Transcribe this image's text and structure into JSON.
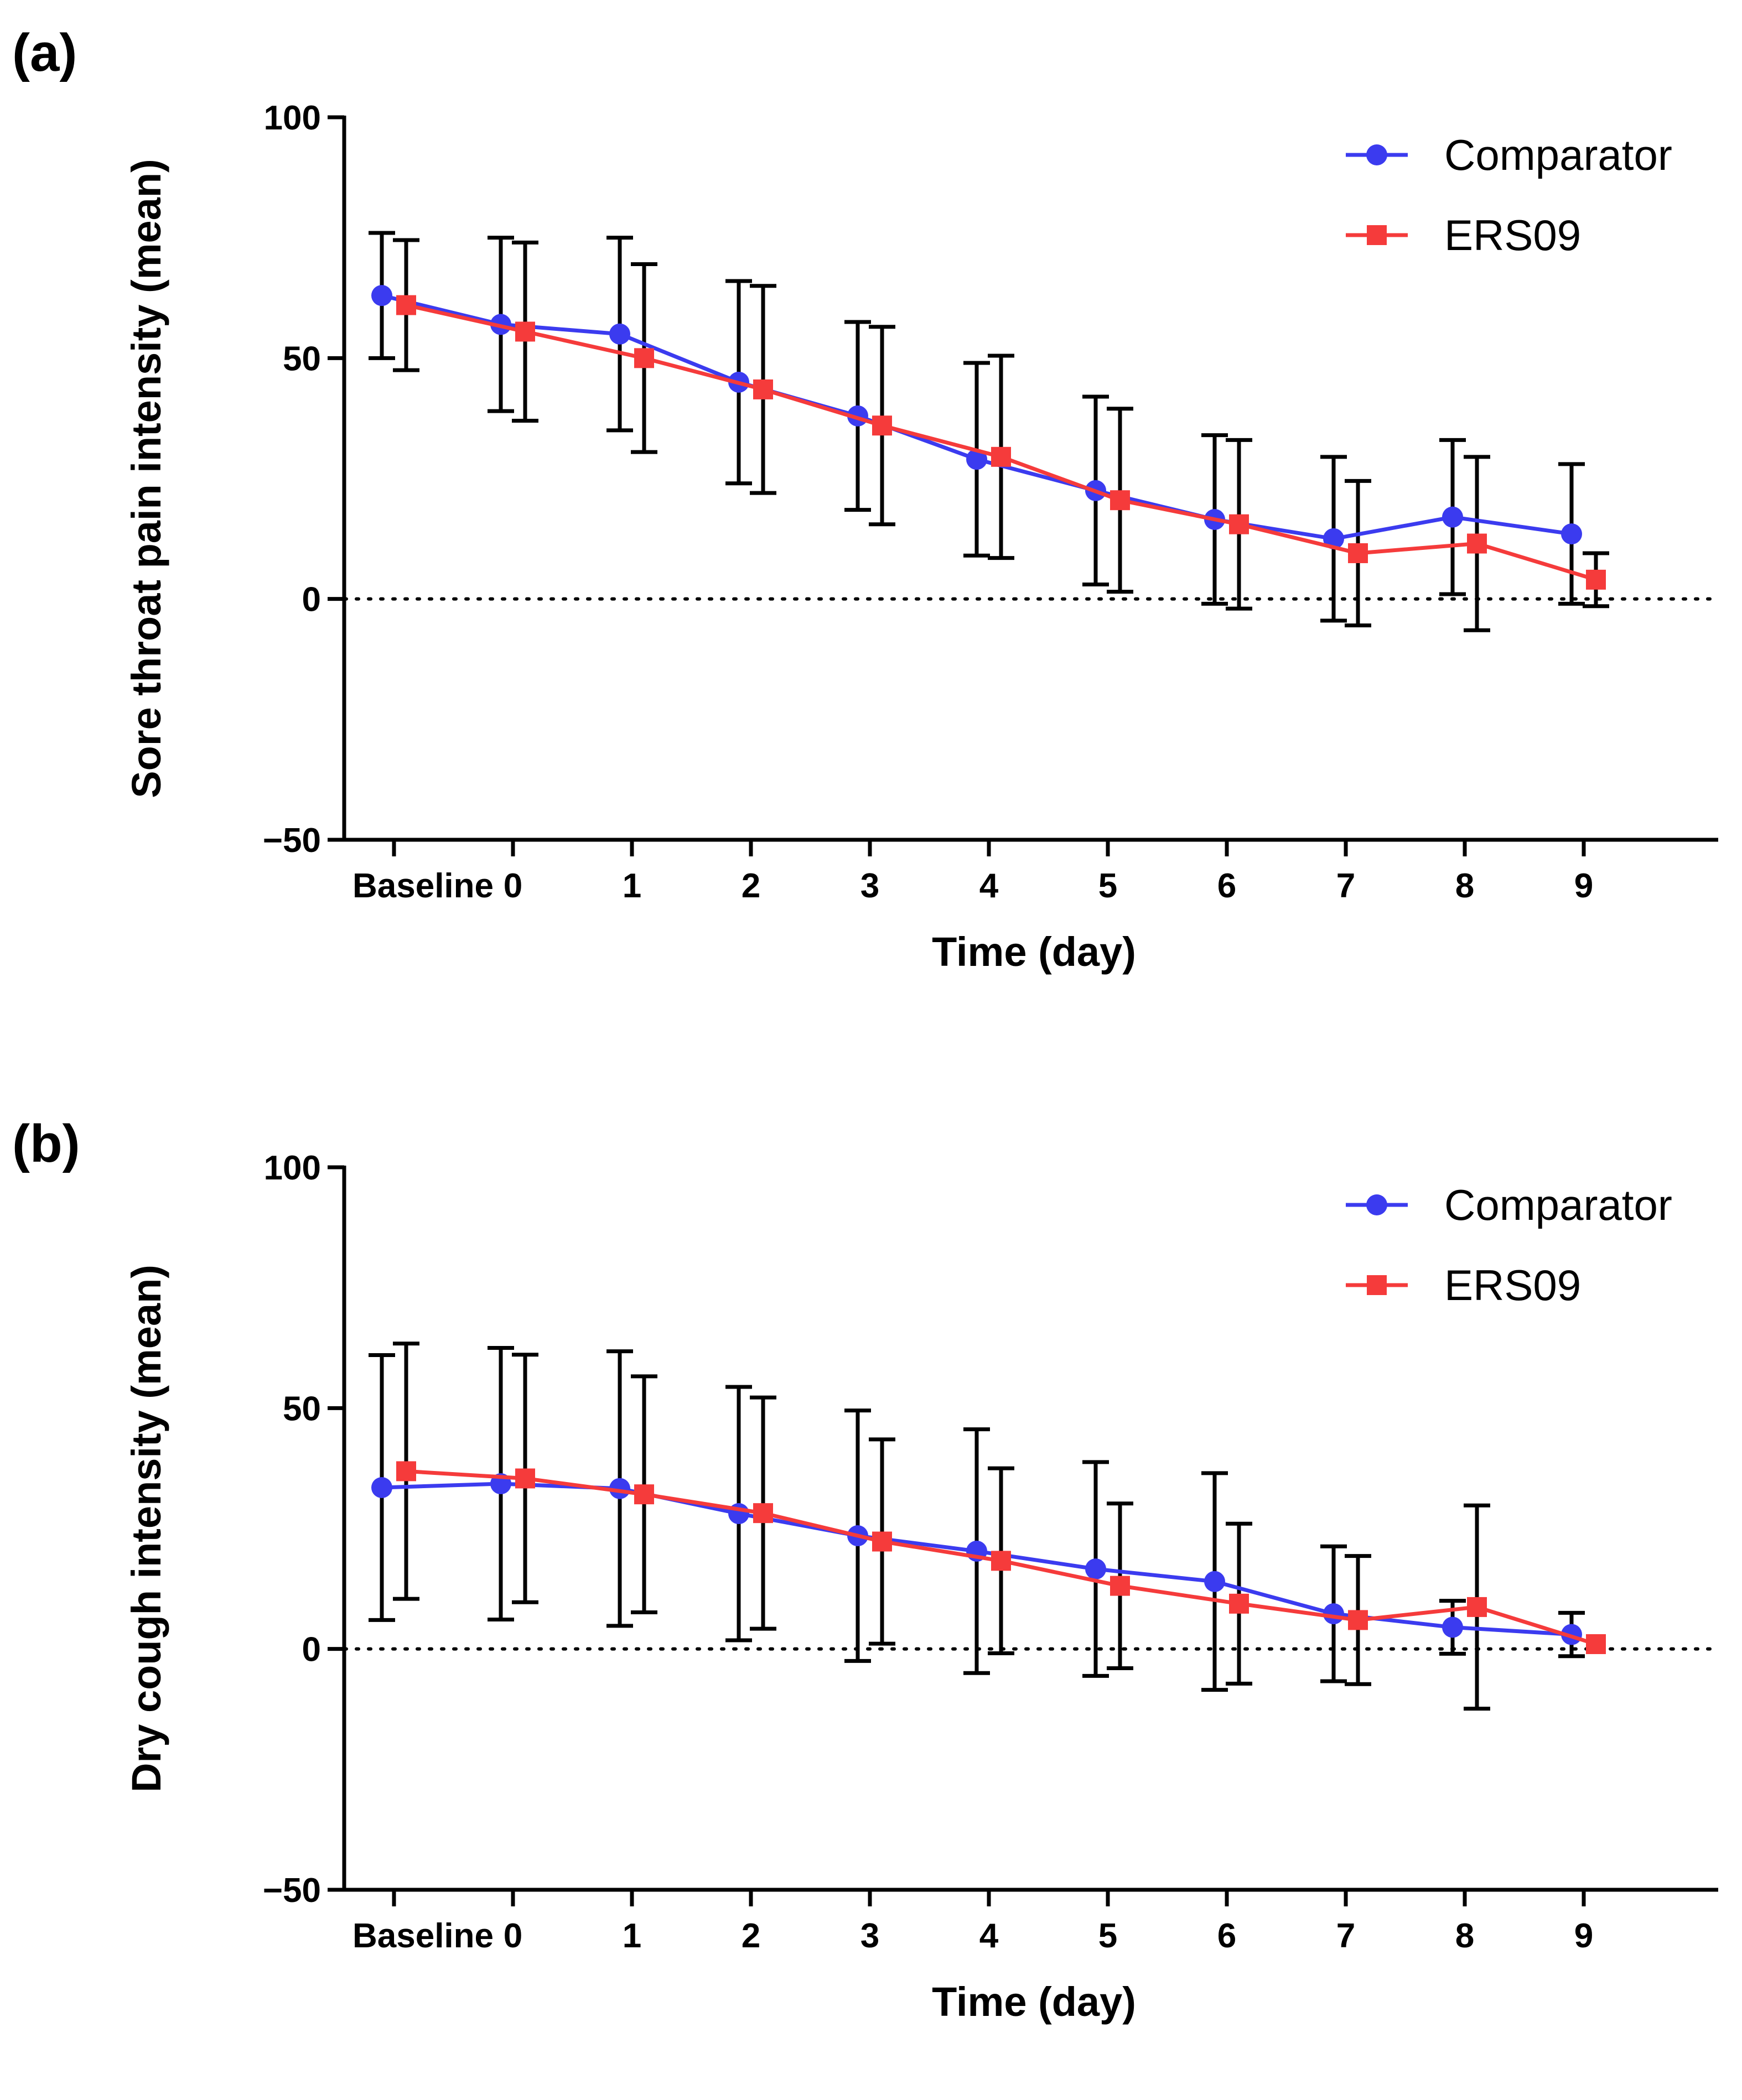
{
  "chart_data": [
    {
      "panel_label": "(a)",
      "type": "line",
      "xlabel": "Time (day)",
      "ylabel": "Sore throat pain intensity (mean)",
      "categories": [
        "Baseline",
        "0",
        "1",
        "2",
        "3",
        "4",
        "5",
        "6",
        "7",
        "8",
        "9"
      ],
      "ylim": [
        -50,
        100
      ],
      "yticks": [
        100,
        50,
        0,
        -50
      ],
      "ytick_labels": [
        "100",
        "50",
        "0",
        "−50"
      ],
      "reference_line": 0,
      "legend_position": "top-right",
      "series": [
        {
          "name": "Comparator",
          "color": "#3b3bef",
          "marker": "circle",
          "values": [
            63,
            57,
            55,
            45,
            38,
            29,
            22.5,
            16.5,
            12.5,
            17,
            13.5
          ],
          "error": [
            13,
            18,
            20,
            21,
            19.5,
            20,
            19.5,
            17.5,
            17,
            16,
            14.5
          ]
        },
        {
          "name": "ERS09",
          "color": "#f53b3b",
          "marker": "square",
          "values": [
            61,
            55.5,
            50,
            43.5,
            36,
            29.5,
            20.5,
            15.5,
            9.5,
            11.5,
            4
          ],
          "error": [
            13.5,
            18.5,
            19.5,
            21.5,
            20.5,
            21,
            19,
            17.5,
            15,
            18,
            5.5
          ]
        }
      ]
    },
    {
      "panel_label": "(b)",
      "type": "line",
      "xlabel": "Time (day)",
      "ylabel": "Dry cough intensity (mean)",
      "categories": [
        "Baseline",
        "0",
        "1",
        "2",
        "3",
        "4",
        "5",
        "6",
        "7",
        "8",
        "9"
      ],
      "ylim": [
        -50,
        100
      ],
      "yticks": [
        100,
        50,
        0,
        -50
      ],
      "ytick_labels": [
        "100",
        "50",
        "0",
        "−50"
      ],
      "reference_line": 0,
      "legend_position": "top-right",
      "series": [
        {
          "name": "Comparator",
          "color": "#3b3bef",
          "marker": "circle",
          "values": [
            33.5,
            34.3,
            33.3,
            28.1,
            23.5,
            20.3,
            16.6,
            14,
            7.3,
            4.5,
            3
          ],
          "error": [
            27.5,
            28.2,
            28.5,
            26.3,
            26,
            25.3,
            22.2,
            22.5,
            14,
            5.5,
            4.5
          ]
        },
        {
          "name": "ERS09",
          "color": "#f53b3b",
          "marker": "square",
          "values": [
            36.9,
            35.4,
            32.1,
            28.2,
            22.3,
            18.3,
            13.1,
            9.4,
            6,
            8.7,
            1
          ],
          "error": [
            26.5,
            25.7,
            24.5,
            24,
            21.2,
            19.2,
            17.1,
            16.6,
            13.3,
            21.1,
            0
          ]
        }
      ]
    }
  ]
}
